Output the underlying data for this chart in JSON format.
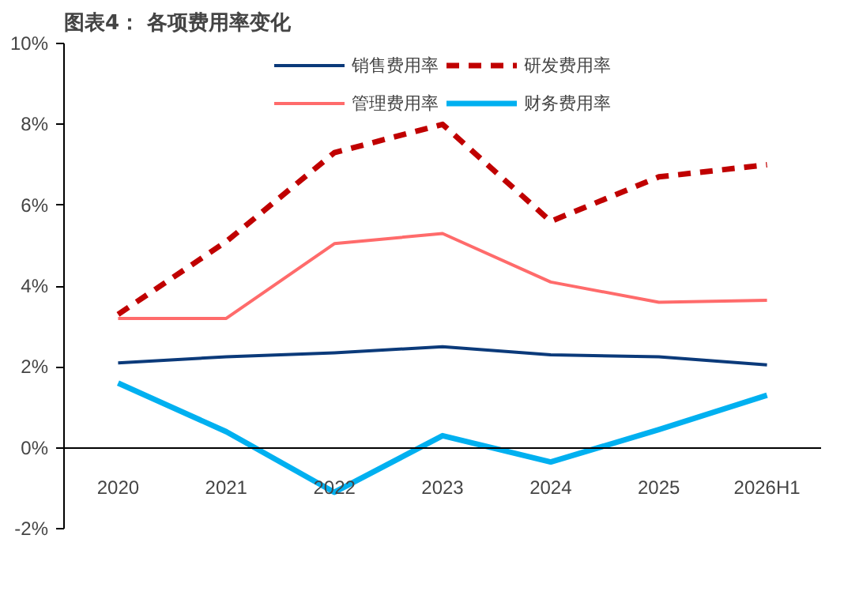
{
  "chart_data": {
    "type": "line",
    "title": "图表4： 各项费用率变化",
    "categories": [
      "2020",
      "2021",
      "2022",
      "2023",
      "2024",
      "2025",
      "2026H1"
    ],
    "series": [
      {
        "name": "销售费用率",
        "color": "#0b3a7a",
        "values": [
          2.1,
          2.25,
          2.35,
          2.5,
          2.3,
          2.25,
          2.05
        ]
      },
      {
        "name": "管理费用率",
        "color": "#ff6b6b",
        "values": [
          3.2,
          3.2,
          5.05,
          5.3,
          4.1,
          3.6,
          3.65
        ]
      },
      {
        "name": "研发费用率",
        "color": "#c00000",
        "line_style": "dashed",
        "values": [
          3.3,
          5.1,
          7.3,
          8.0,
          5.6,
          6.7,
          7.0
        ]
      },
      {
        "name": "财务费用率",
        "color": "#00b0f0",
        "values": [
          1.6,
          0.4,
          -1.1,
          0.3,
          -0.35,
          0.45,
          1.3
        ]
      }
    ],
    "ylim": [
      -2,
      10
    ],
    "yticks": [
      {
        "value": -2,
        "label": "-2%"
      },
      {
        "value": 0,
        "label": "0%"
      },
      {
        "value": 2,
        "label": "2%"
      },
      {
        "value": 4,
        "label": "4%"
      },
      {
        "value": 6,
        "label": "6%"
      },
      {
        "value": 8,
        "label": "8%"
      },
      {
        "value": 10,
        "label": "10%"
      }
    ],
    "grid": false,
    "legend": "top",
    "marker": "none"
  }
}
